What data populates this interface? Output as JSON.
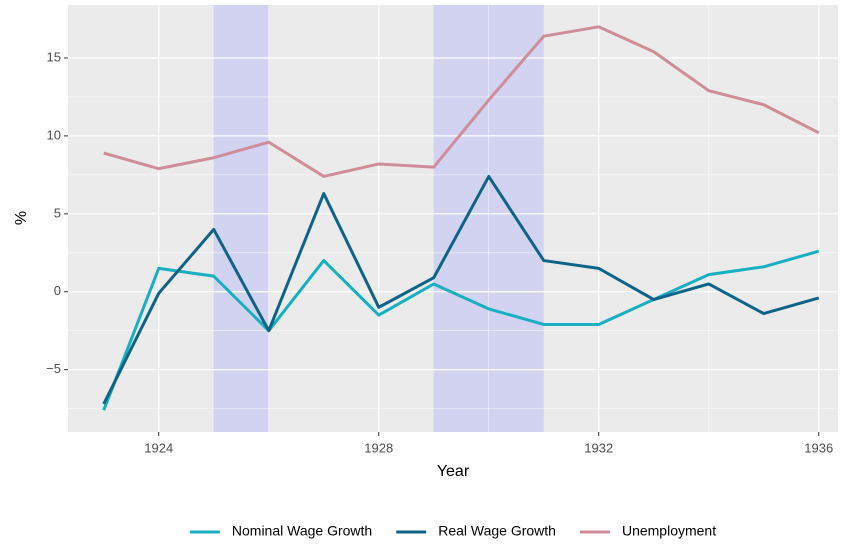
{
  "chart_data": {
    "type": "line",
    "x_label": "Year",
    "y_label": "%",
    "x": [
      1923,
      1924,
      1925,
      1926,
      1927,
      1928,
      1929,
      1930,
      1931,
      1932,
      1933,
      1934,
      1935,
      1936
    ],
    "series": [
      {
        "name": "Nominal Wage Growth",
        "color": "#17b0c0",
        "values": [
          -7.6,
          1.5,
          1.0,
          -2.5,
          2.0,
          -1.5,
          0.5,
          -1.1,
          -2.1,
          -2.1,
          -0.5,
          1.1,
          1.6,
          2.6
        ]
      },
      {
        "name": "Real Wage Growth",
        "color": "#0e6488",
        "values": [
          -7.2,
          -0.1,
          4.0,
          -2.5,
          6.3,
          -1.0,
          0.9,
          7.4,
          2.0,
          1.5,
          -0.5,
          0.5,
          -1.4,
          -0.4
        ]
      },
      {
        "name": "Unemployment",
        "color": "#cf8d99",
        "values": [
          8.9,
          7.9,
          8.6,
          9.6,
          7.4,
          8.2,
          8.0,
          12.3,
          16.4,
          17.0,
          15.4,
          12.9,
          12.0,
          10.2
        ]
      }
    ],
    "shaded_ranges": [
      [
        1925,
        1926
      ],
      [
        1929,
        1931
      ]
    ],
    "shade_color": "#d2d3f1",
    "xlim": [
      1922.35,
      1936.35
    ],
    "xticks": [
      1924,
      1928,
      1932,
      1936
    ],
    "minor_xticks": [
      1926,
      1930,
      1934
    ],
    "ylim": [
      -9,
      18.4
    ],
    "yticks": [
      {
        "value": -5,
        "label": "−5"
      },
      0,
      5,
      10,
      15
    ],
    "minor_yticks": [
      -7.5,
      -2.5,
      2.5,
      7.5,
      12.5
    ],
    "grid": true,
    "legend": "bottom"
  }
}
